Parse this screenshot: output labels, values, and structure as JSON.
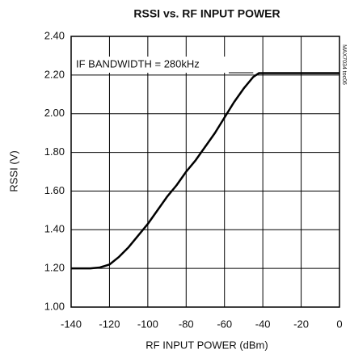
{
  "chart_data": {
    "type": "line",
    "title": "RSSI vs. RF INPUT POWER",
    "x_label": "RF INPUT POWER (dBm)",
    "y_label": "RSSI (V)",
    "annotation": "IF BANDWIDTH = 280kHz",
    "figure_id": "MAX7034 toc06",
    "x": [
      -140,
      -130,
      -125,
      -120,
      -115,
      -110,
      -105,
      -100,
      -95,
      -90,
      -85,
      -80,
      -75,
      -70,
      -65,
      -60,
      -55,
      -50,
      -45,
      -42,
      -40,
      -30,
      -20,
      -10,
      0
    ],
    "series": [
      {
        "name": "RSSI",
        "color": "#000000",
        "values": [
          1.2,
          1.2,
          1.205,
          1.22,
          1.26,
          1.31,
          1.37,
          1.43,
          1.5,
          1.57,
          1.63,
          1.7,
          1.76,
          1.83,
          1.9,
          1.98,
          2.06,
          2.13,
          2.19,
          2.21,
          2.21,
          2.21,
          2.21,
          2.21,
          2.21
        ]
      }
    ],
    "xlim": [
      -140,
      0
    ],
    "xticks": [
      -140,
      -120,
      -100,
      -80,
      -60,
      -40,
      -20,
      0
    ],
    "ylim": [
      1,
      2.4
    ],
    "yticks": [
      {
        "value": 1,
        "label": "1.00"
      },
      {
        "value": 1.2,
        "label": "1.20"
      },
      {
        "value": 1.4,
        "label": "1.40"
      },
      {
        "value": 1.6,
        "label": "1.60"
      },
      {
        "value": 1.8,
        "label": "1.80"
      },
      {
        "value": 2,
        "label": "2.00"
      },
      {
        "value": 2.2,
        "label": "2.20"
      },
      {
        "value": 2.4,
        "label": "2.40"
      }
    ],
    "grid": true
  }
}
